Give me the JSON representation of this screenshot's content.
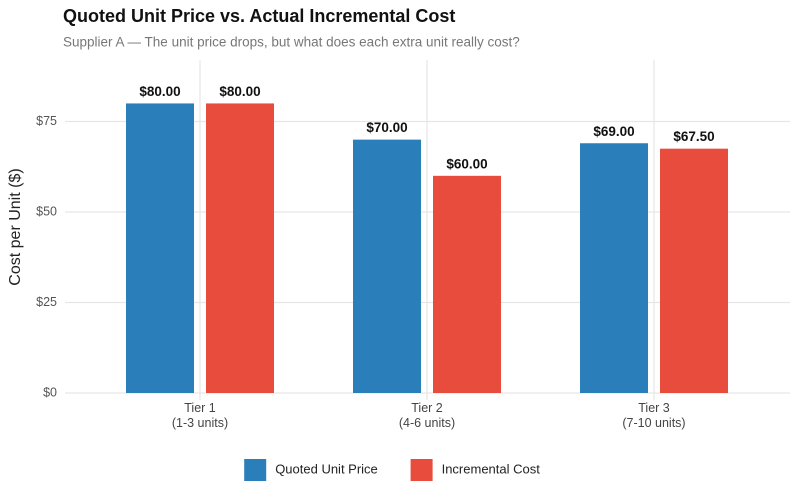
{
  "chart_data": {
    "type": "bar",
    "title": "Quoted Unit Price vs. Actual Incremental Cost",
    "subtitle": "Supplier A — The unit price drops, but what does each extra unit really cost?",
    "y_label": "Cost per Unit ($)",
    "categories": [
      "Tier 1\n(1-3 units)",
      "Tier 2\n(4-6 units)",
      "Tier 3\n(7-10 units)"
    ],
    "series": [
      {
        "name": "Quoted Unit Price",
        "color": "#2a7fba",
        "values": [
          80,
          70,
          69
        ],
        "value_labels": [
          "$80.00",
          "$70.00",
          "$69.00"
        ]
      },
      {
        "name": "Incremental Cost",
        "color": "#e74c3c",
        "values": [
          80,
          60,
          67.5
        ],
        "value_labels": [
          "$80.00",
          "$60.00",
          "$67.50"
        ]
      }
    ],
    "ylim": [
      0,
      92
    ],
    "yticks": [
      {
        "value": 0,
        "label": "$0"
      },
      {
        "value": 25,
        "label": "$25"
      },
      {
        "value": 50,
        "label": "$50"
      },
      {
        "value": 75,
        "label": "$75"
      }
    ],
    "grid": true,
    "legend": "bottom"
  }
}
